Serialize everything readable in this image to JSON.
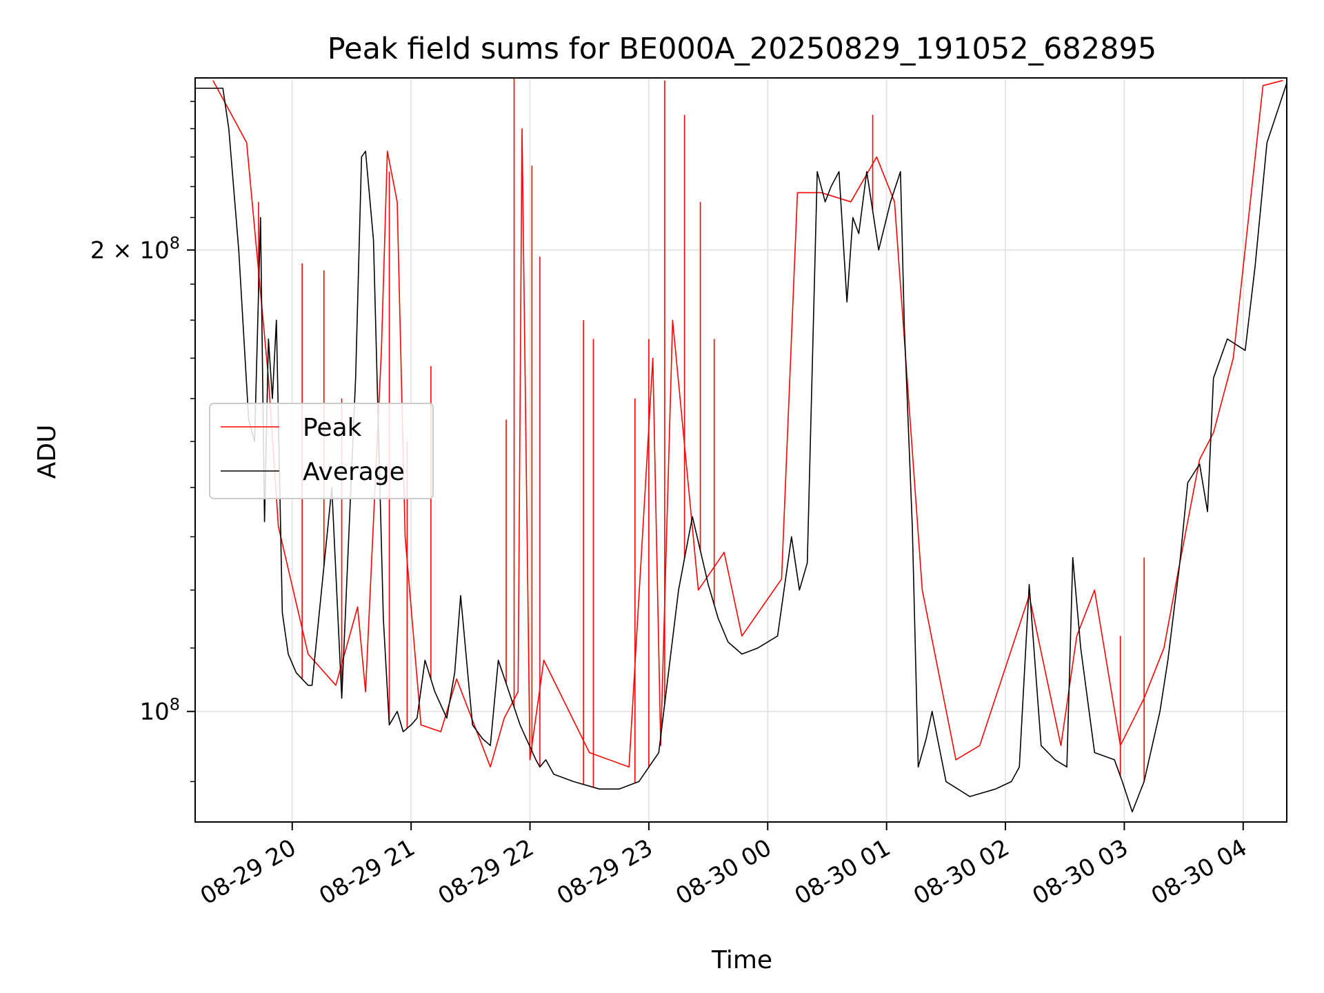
{
  "chart_data": {
    "type": "line",
    "title": "Peak field sums for BE000A_20250829_191052_682895",
    "xlabel": "Time",
    "ylabel": "ADU",
    "yscale": "log",
    "grid": true,
    "legend_position": "center-left",
    "x_range": [
      "2025-08-29T19:11",
      "2025-08-30T04:22"
    ],
    "y_range": [
      84700000,
      259000000
    ],
    "x_ticks": [
      {
        "label": "08-29 20",
        "value": "2025-08-29T20:00"
      },
      {
        "label": "08-29 21",
        "value": "2025-08-29T21:00"
      },
      {
        "label": "08-29 22",
        "value": "2025-08-29T22:00"
      },
      {
        "label": "08-29 23",
        "value": "2025-08-29T23:00"
      },
      {
        "label": "08-30 00",
        "value": "2025-08-30T00:00"
      },
      {
        "label": "08-30 01",
        "value": "2025-08-30T01:00"
      },
      {
        "label": "08-30 02",
        "value": "2025-08-30T02:00"
      },
      {
        "label": "08-30 03",
        "value": "2025-08-30T03:00"
      },
      {
        "label": "08-30 04",
        "value": "2025-08-30T04:00"
      }
    ],
    "y_ticks_major": [
      {
        "label": "2 × 10",
        "exp": "8",
        "value": 200000000
      },
      {
        "label": "10",
        "exp": "8",
        "value": 100000000
      }
    ],
    "series": [
      {
        "name": "Peak",
        "color": "#ff0000",
        "x": [
          "2025-08-29T19:20",
          "2025-08-29T19:37",
          "2025-08-29T19:48",
          "2025-08-29T19:53",
          "2025-08-29T20:08",
          "2025-08-29T20:22",
          "2025-08-29T20:33",
          "2025-08-29T20:37",
          "2025-08-29T20:45",
          "2025-08-29T20:48",
          "2025-08-29T20:53",
          "2025-08-29T20:57",
          "2025-08-29T21:05",
          "2025-08-29T21:15",
          "2025-08-29T21:23",
          "2025-08-29T21:40",
          "2025-08-29T21:47",
          "2025-08-29T21:54",
          "2025-08-29T21:56",
          "2025-08-29T22:00",
          "2025-08-29T22:07",
          "2025-08-29T22:30",
          "2025-08-29T22:50",
          "2025-08-29T23:02",
          "2025-08-29T23:06",
          "2025-08-29T23:12",
          "2025-08-29T23:25",
          "2025-08-29T23:38",
          "2025-08-29T23:47",
          "2025-08-30T00:07",
          "2025-08-30T00:15",
          "2025-08-30T00:27",
          "2025-08-30T00:42",
          "2025-08-30T00:55",
          "2025-08-30T01:04",
          "2025-08-30T01:18",
          "2025-08-30T01:35",
          "2025-08-30T01:47",
          "2025-08-30T02:12",
          "2025-08-30T02:28",
          "2025-08-30T02:36",
          "2025-08-30T02:45",
          "2025-08-30T02:58",
          "2025-08-30T03:10",
          "2025-08-30T03:20",
          "2025-08-30T03:28",
          "2025-08-30T03:38",
          "2025-08-30T03:45",
          "2025-08-30T03:55",
          "2025-08-30T04:10",
          "2025-08-30T04:20"
        ],
        "y": [
          258000000,
          235000000,
          165000000,
          132000000,
          109000000,
          104000000,
          117000000,
          103000000,
          172000000,
          232000000,
          215000000,
          130000000,
          98000000,
          97000000,
          105000000,
          92000000,
          99000000,
          103000000,
          240000000,
          93000000,
          108000000,
          94000000,
          92000000,
          170000000,
          95000000,
          180000000,
          120000000,
          127000000,
          112000000,
          122000000,
          218000000,
          218000000,
          215000000,
          230000000,
          215000000,
          120000000,
          93000000,
          95000000,
          119000000,
          95000000,
          112000000,
          120000000,
          95000000,
          102000000,
          110000000,
          125000000,
          146000000,
          152000000,
          170000000,
          256000000,
          258000000
        ],
        "spikes": [
          {
            "x": "2025-08-29T19:43",
            "y": 215000000
          },
          {
            "x": "2025-08-29T20:05",
            "y": 196000000
          },
          {
            "x": "2025-08-29T20:16",
            "y": 194000000
          },
          {
            "x": "2025-08-29T20:25",
            "y": 160000000
          },
          {
            "x": "2025-08-29T20:49",
            "y": 225000000
          },
          {
            "x": "2025-08-29T20:58",
            "y": 150000000
          },
          {
            "x": "2025-08-29T21:10",
            "y": 168000000
          },
          {
            "x": "2025-08-29T21:48",
            "y": 155000000
          },
          {
            "x": "2025-08-29T21:52",
            "y": 259000000
          },
          {
            "x": "2025-08-29T22:01",
            "y": 227000000
          },
          {
            "x": "2025-08-29T22:05",
            "y": 198000000
          },
          {
            "x": "2025-08-29T22:27",
            "y": 180000000
          },
          {
            "x": "2025-08-29T22:32",
            "y": 175000000
          },
          {
            "x": "2025-08-29T22:53",
            "y": 160000000
          },
          {
            "x": "2025-08-29T23:00",
            "y": 175000000
          },
          {
            "x": "2025-08-29T23:08",
            "y": 258000000
          },
          {
            "x": "2025-08-29T23:18",
            "y": 245000000
          },
          {
            "x": "2025-08-29T23:26",
            "y": 215000000
          },
          {
            "x": "2025-08-29T23:33",
            "y": 175000000
          },
          {
            "x": "2025-08-30T00:53",
            "y": 245000000
          },
          {
            "x": "2025-08-30T02:58",
            "y": 112000000
          },
          {
            "x": "2025-08-30T03:10",
            "y": 126000000
          }
        ]
      },
      {
        "name": "Average",
        "color": "#000000",
        "x": [
          "2025-08-29T19:11",
          "2025-08-29T19:25",
          "2025-08-29T19:28",
          "2025-08-29T19:33",
          "2025-08-29T19:38",
          "2025-08-29T19:41",
          "2025-08-29T19:44",
          "2025-08-29T19:46",
          "2025-08-29T19:48",
          "2025-08-29T19:50",
          "2025-08-29T19:52",
          "2025-08-29T19:55",
          "2025-08-29T19:58",
          "2025-08-29T20:02",
          "2025-08-29T20:08",
          "2025-08-29T20:10",
          "2025-08-29T20:20",
          "2025-08-29T20:25",
          "2025-08-29T20:32",
          "2025-08-29T20:35",
          "2025-08-29T20:37",
          "2025-08-29T20:41",
          "2025-08-29T20:46",
          "2025-08-29T20:49",
          "2025-08-29T20:53",
          "2025-08-29T20:56",
          "2025-08-29T21:00",
          "2025-08-29T21:03",
          "2025-08-29T21:07",
          "2025-08-29T21:12",
          "2025-08-29T21:18",
          "2025-08-29T21:22",
          "2025-08-29T21:25",
          "2025-08-29T21:31",
          "2025-08-29T21:36",
          "2025-08-29T21:40",
          "2025-08-29T21:44",
          "2025-08-29T21:55",
          "2025-08-29T22:03",
          "2025-08-29T22:05",
          "2025-08-29T22:08",
          "2025-08-29T22:12",
          "2025-08-29T22:22",
          "2025-08-29T22:35",
          "2025-08-29T22:45",
          "2025-08-29T22:55",
          "2025-08-29T23:05",
          "2025-08-29T23:15",
          "2025-08-29T23:22",
          "2025-08-29T23:30",
          "2025-08-29T23:35",
          "2025-08-29T23:40",
          "2025-08-29T23:47",
          "2025-08-29T23:55",
          "2025-08-30T00:05",
          "2025-08-30T00:12",
          "2025-08-30T00:16",
          "2025-08-30T00:20",
          "2025-08-30T00:25",
          "2025-08-30T00:29",
          "2025-08-30T00:32",
          "2025-08-30T00:36",
          "2025-08-30T00:40",
          "2025-08-30T00:43",
          "2025-08-30T00:46",
          "2025-08-30T00:50",
          "2025-08-30T00:56",
          "2025-08-30T01:02",
          "2025-08-30T01:07",
          "2025-08-30T01:09",
          "2025-08-30T01:13",
          "2025-08-30T01:16",
          "2025-08-30T01:20",
          "2025-08-30T01:23",
          "2025-08-30T01:30",
          "2025-08-30T01:42",
          "2025-08-30T01:55",
          "2025-08-30T02:03",
          "2025-08-30T02:07",
          "2025-08-30T02:12",
          "2025-08-30T02:18",
          "2025-08-30T02:25",
          "2025-08-30T02:31",
          "2025-08-30T02:34",
          "2025-08-30T02:38",
          "2025-08-30T02:45",
          "2025-08-30T02:55",
          "2025-08-30T02:59",
          "2025-08-30T03:04",
          "2025-08-30T03:10",
          "2025-08-30T03:18",
          "2025-08-30T03:22",
          "2025-08-30T03:28",
          "2025-08-30T03:32",
          "2025-08-30T03:38",
          "2025-08-30T03:42",
          "2025-08-30T03:45",
          "2025-08-30T03:52",
          "2025-08-30T04:01",
          "2025-08-30T04:06",
          "2025-08-30T04:12",
          "2025-08-30T04:22"
        ],
        "y": [
          255000000,
          255000000,
          240000000,
          200000000,
          155000000,
          150000000,
          210000000,
          133000000,
          175000000,
          160000000,
          180000000,
          116000000,
          109000000,
          106000000,
          104000000,
          104000000,
          140000000,
          102000000,
          165000000,
          230000000,
          232000000,
          203000000,
          115000000,
          98000000,
          100000000,
          97000000,
          98000000,
          99000000,
          108000000,
          103000000,
          99000000,
          106000000,
          119000000,
          98000000,
          96000000,
          95000000,
          108000000,
          98000000,
          93000000,
          92000000,
          93000000,
          91000000,
          90000000,
          89000000,
          89000000,
          90000000,
          94000000,
          120000000,
          134000000,
          121000000,
          115000000,
          111000000,
          109000000,
          110000000,
          112000000,
          130000000,
          120000000,
          125000000,
          225000000,
          215000000,
          220000000,
          225000000,
          185000000,
          210000000,
          205000000,
          225000000,
          200000000,
          215000000,
          225000000,
          178000000,
          132000000,
          92000000,
          96000000,
          100000000,
          90000000,
          88000000,
          89000000,
          90000000,
          92000000,
          121000000,
          95000000,
          93000000,
          92000000,
          126000000,
          110000000,
          94000000,
          93000000,
          90000000,
          86000000,
          90000000,
          100000000,
          108000000,
          125000000,
          141000000,
          145000000,
          135000000,
          165000000,
          175000000,
          172000000,
          195000000,
          235000000,
          257000000
        ]
      }
    ]
  }
}
